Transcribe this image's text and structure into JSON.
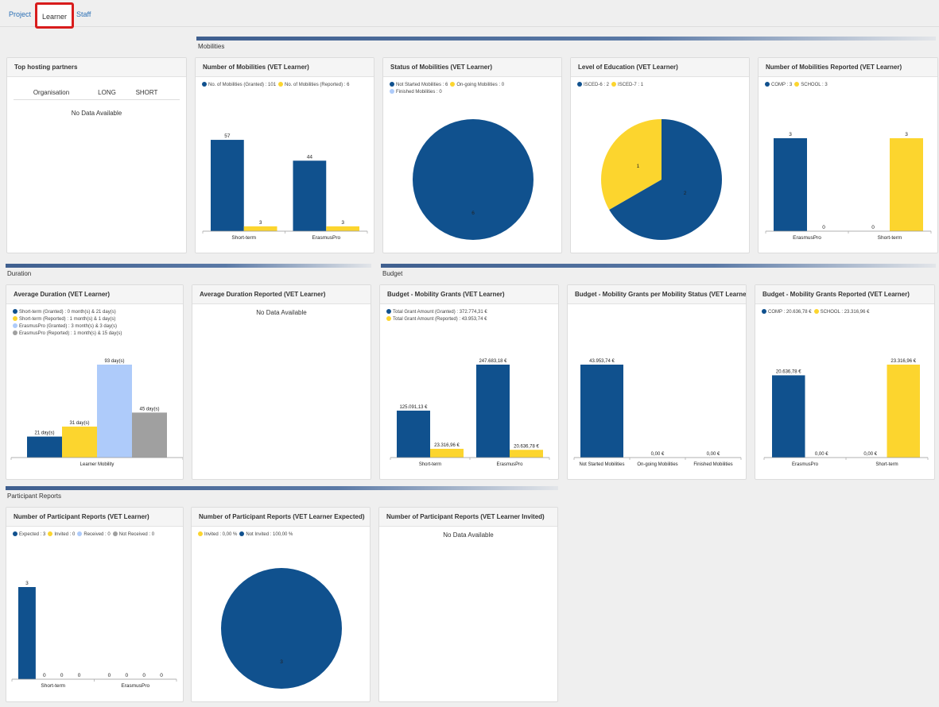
{
  "colors": {
    "navy": "#10518e",
    "yellow": "#fcd52e",
    "light_blue": "#aecbfa",
    "grey": "#a0a0a0",
    "link": "#2a6fb5"
  },
  "tabs": [
    {
      "label": "Project"
    },
    {
      "label": "Learner"
    },
    {
      "label": "Staff"
    }
  ],
  "sections": {
    "mobilities": "Mobilities",
    "duration": "Duration",
    "budget": "Budget",
    "participant_reports": "Participant Reports"
  },
  "no_data": "No Data Available",
  "top_hosting_partners": {
    "title": "Top hosting partners",
    "columns": [
      "Organisation",
      "LONG",
      "SHORT"
    ],
    "empty": "No Data Available"
  },
  "cards": {
    "num_mobilities": {
      "title": "Number of Mobilities (VET Learner)",
      "legend": [
        {
          "text": "No. of Mobilities (Granted) : 101",
          "color": "#10518e"
        },
        {
          "text": "No. of Mobilities (Reported) : 6",
          "color": "#fcd52e"
        }
      ]
    },
    "status_mobilities": {
      "title": "Status of Mobilities (VET Learner)",
      "legend": [
        {
          "text": "Not Started Mobilities : 6",
          "color": "#10518e"
        },
        {
          "text": "On-going Mobilities : 0",
          "color": "#fcd52e"
        },
        {
          "text": "Finished Mobilities : 0",
          "color": "#aecbfa"
        }
      ]
    },
    "level_education": {
      "title": "Level of Education (VET Learner)",
      "legend": [
        {
          "text": "ISCED-6 : 2",
          "color": "#10518e"
        },
        {
          "text": "ISCED-7 : 1",
          "color": "#fcd52e"
        }
      ]
    },
    "num_reported": {
      "title": "Number of Mobilities Reported (VET Learner)",
      "legend": [
        {
          "text": "COMP : 3",
          "color": "#10518e"
        },
        {
          "text": "SCHOOL : 3",
          "color": "#fcd52e"
        }
      ]
    },
    "avg_duration": {
      "title": "Average Duration (VET Learner)",
      "legend": [
        {
          "text": "Short-term (Granted) : 0 month(s) & 21 day(s)",
          "color": "#10518e"
        },
        {
          "text": "Short-term (Reported) : 1 month(s) & 1 day(s)",
          "color": "#fcd52e"
        },
        {
          "text": "ErasmusPro (Granted) : 3 month(s) & 3 day(s)",
          "color": "#aecbfa"
        },
        {
          "text": "ErasmusPro (Reported) : 1 month(s) & 15 day(s)",
          "color": "#a0a0a0"
        }
      ]
    },
    "avg_duration_reported": {
      "title": "Average Duration Reported (VET Learner)",
      "empty": "No Data Available"
    },
    "budget_grants": {
      "title": "Budget - Mobility Grants (VET Learner)",
      "legend": [
        {
          "text": "Total Grant Amount (Granted) : 372.774,31 €",
          "color": "#10518e"
        },
        {
          "text": "Total Grant Amount (Reported) : 43.953,74 €",
          "color": "#fcd52e"
        }
      ]
    },
    "budget_status": {
      "title": "Budget - Mobility Grants per Mobility Status (VET Learner)"
    },
    "budget_reported": {
      "title": "Budget - Mobility Grants Reported (VET Learner)",
      "legend": [
        {
          "text": "COMP : 20.636,78 €",
          "color": "#10518e"
        },
        {
          "text": "SCHOOL : 23.316,96 €",
          "color": "#fcd52e"
        }
      ]
    },
    "participant_reports": {
      "title": "Number of Participant Reports (VET Learner)",
      "legend": [
        {
          "text": "Expected : 3",
          "color": "#10518e"
        },
        {
          "text": "Invited : 0",
          "color": "#fcd52e"
        },
        {
          "text": "Received : 0",
          "color": "#aecbfa"
        },
        {
          "text": "Not Received : 0",
          "color": "#a0a0a0"
        }
      ]
    },
    "reports_expected": {
      "title": "Number of Participant Reports (VET Learner Expected)",
      "legend": [
        {
          "text": "Invited : 0,00 %",
          "color": "#fcd52e"
        },
        {
          "text": "Not Invited : 100,00 %",
          "color": "#10518e"
        }
      ]
    },
    "reports_invited": {
      "title": "Number of Participant Reports (VET Learner Invited)",
      "empty": "No Data Available"
    }
  },
  "chart_data": [
    {
      "id": "num_mobilities",
      "type": "bar",
      "ylim": [
        0,
        60
      ],
      "categories": [
        "Short-term",
        "ErasmusPro"
      ],
      "series": [
        {
          "name": "No. of Mobilities (Granted)",
          "color": "#10518e",
          "values": [
            57,
            44
          ],
          "labels": [
            "57",
            "44"
          ]
        },
        {
          "name": "No. of Mobilities (Reported)",
          "color": "#fcd52e",
          "values": [
            3,
            3
          ],
          "labels": [
            "3",
            "3"
          ]
        }
      ]
    },
    {
      "id": "status_mobilities",
      "type": "pie",
      "slices": [
        {
          "name": "Not Started Mobilities",
          "value": 6,
          "label": "6",
          "color": "#10518e"
        }
      ]
    },
    {
      "id": "level_education",
      "type": "pie",
      "slices": [
        {
          "name": "ISCED-6",
          "value": 2,
          "label": "2",
          "color": "#10518e"
        },
        {
          "name": "ISCED-7",
          "value": 1,
          "label": "1",
          "color": "#fcd52e"
        }
      ]
    },
    {
      "id": "num_reported",
      "type": "bar",
      "ylim": [
        0,
        3
      ],
      "categories": [
        "ErasmusPro",
        "Short-term"
      ],
      "series": [
        {
          "name": "COMP",
          "color": "#10518e",
          "values": [
            3,
            0
          ],
          "labels": [
            "3",
            "0"
          ]
        },
        {
          "name": "SCHOOL",
          "color": "#fcd52e",
          "values": [
            0,
            3
          ],
          "labels": [
            "0",
            "3"
          ]
        }
      ]
    },
    {
      "id": "avg_duration",
      "type": "bar",
      "ylim": [
        0,
        93
      ],
      "categories": [
        "Learner Mobility"
      ],
      "series": [
        {
          "name": "Short-term (Granted)",
          "color": "#10518e",
          "values": [
            21
          ],
          "labels": [
            "21 day(s)"
          ]
        },
        {
          "name": "Short-term (Reported)",
          "color": "#fcd52e",
          "values": [
            31
          ],
          "labels": [
            "31 day(s)"
          ]
        },
        {
          "name": "ErasmusPro (Granted)",
          "color": "#aecbfa",
          "values": [
            93
          ],
          "labels": [
            "93 day(s)"
          ]
        },
        {
          "name": "ErasmusPro (Reported)",
          "color": "#a0a0a0",
          "values": [
            45
          ],
          "labels": [
            "45 day(s)"
          ]
        }
      ]
    },
    {
      "id": "budget_grants",
      "type": "bar",
      "ylim": [
        0,
        247683.18
      ],
      "categories": [
        "Short-term",
        "ErasmusPro"
      ],
      "series": [
        {
          "name": "Total Grant Amount (Granted)",
          "color": "#10518e",
          "values": [
            125091.13,
            247683.18
          ],
          "labels": [
            "125.091,13 €",
            "247.683,18 €"
          ]
        },
        {
          "name": "Total Grant Amount (Reported)",
          "color": "#fcd52e",
          "values": [
            23316.96,
            20636.78
          ],
          "labels": [
            "23.316,96 €",
            "20.636,78 €"
          ]
        }
      ]
    },
    {
      "id": "budget_status",
      "type": "bar",
      "ylim": [
        0,
        43953.74
      ],
      "categories": [
        "Not Started Mobilities",
        "On-going Mobilities",
        "Finished Mobilities"
      ],
      "series": [
        {
          "name": "Grant",
          "color": "#10518e",
          "values": [
            43953.74,
            0,
            0
          ],
          "labels": [
            "43.953,74 €",
            "0,00 €",
            "0,00 €"
          ]
        }
      ]
    },
    {
      "id": "budget_reported",
      "type": "bar",
      "ylim": [
        0,
        23316.96
      ],
      "categories": [
        "ErasmusPro",
        "Short-term"
      ],
      "series": [
        {
          "name": "COMP",
          "color": "#10518e",
          "values": [
            20636.78,
            0
          ],
          "labels": [
            "20.636,78 €",
            "0,00 €"
          ]
        },
        {
          "name": "SCHOOL",
          "color": "#fcd52e",
          "values": [
            0,
            23316.96
          ],
          "labels": [
            "0,00 €",
            "23.316,96 €"
          ]
        }
      ]
    },
    {
      "id": "participant_reports",
      "type": "bar",
      "ylim": [
        0,
        3
      ],
      "categories": [
        "Short-term",
        "ErasmusPro"
      ],
      "series": [
        {
          "name": "Expected",
          "color": "#10518e",
          "values": [
            3,
            0
          ],
          "labels": [
            "3",
            "0"
          ]
        },
        {
          "name": "Invited",
          "color": "#fcd52e",
          "values": [
            0,
            0
          ],
          "labels": [
            "0",
            "0"
          ]
        },
        {
          "name": "Received",
          "color": "#aecbfa",
          "values": [
            0,
            0
          ],
          "labels": [
            "0",
            "0"
          ]
        },
        {
          "name": "Not Received",
          "color": "#a0a0a0",
          "values": [
            0,
            0
          ],
          "labels": [
            "0",
            "0"
          ]
        }
      ]
    },
    {
      "id": "reports_expected",
      "type": "pie",
      "slices": [
        {
          "name": "Not Invited",
          "value": 3,
          "label": "3",
          "color": "#10518e"
        }
      ]
    }
  ]
}
